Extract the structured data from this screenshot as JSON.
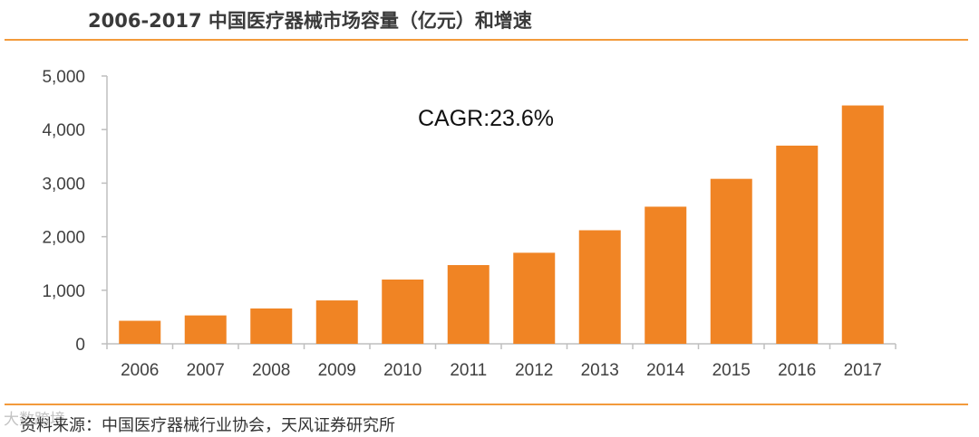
{
  "header": {
    "title": "2006-2017 中国医疗器械市场容量（亿元）和增速"
  },
  "footer": {
    "source": "资料来源：中国医疗器械行业协会，天风证券研究所",
    "watermark": "大数跨境"
  },
  "colors": {
    "bar": "#f08424",
    "rule": "#f39a3b",
    "axis": "#bfbfbf"
  },
  "chart_data": {
    "type": "bar",
    "title": "",
    "xlabel": "",
    "ylabel": "",
    "categories": [
      "2006",
      "2007",
      "2008",
      "2009",
      "2010",
      "2011",
      "2012",
      "2013",
      "2014",
      "2015",
      "2016",
      "2017"
    ],
    "values": [
      430,
      530,
      660,
      810,
      1200,
      1470,
      1700,
      2120,
      2560,
      3080,
      3700,
      4450
    ],
    "ylim": [
      0,
      5000
    ],
    "yticks": [
      0,
      1000,
      2000,
      3000,
      4000,
      5000
    ],
    "ytick_labels": [
      "0",
      "1,000",
      "2,000",
      "3,000",
      "4,000",
      "5,000"
    ],
    "annotation": "CAGR:23.6%",
    "grid": false,
    "legend": "none"
  }
}
